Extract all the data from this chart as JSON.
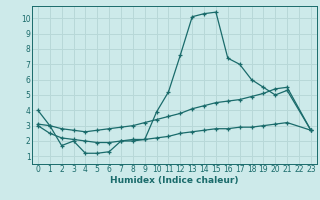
{
  "xlabel": "Humidex (Indice chaleur)",
  "bg_color": "#cdeaea",
  "grid_color": "#b8d8d8",
  "line_color": "#1a6b6b",
  "xlim": [
    -0.5,
    23.5
  ],
  "ylim": [
    0.5,
    10.8
  ],
  "xticks": [
    0,
    1,
    2,
    3,
    4,
    5,
    6,
    7,
    8,
    9,
    10,
    11,
    12,
    13,
    14,
    15,
    16,
    17,
    18,
    19,
    20,
    21,
    22,
    23
  ],
  "yticks": [
    1,
    2,
    3,
    4,
    5,
    6,
    7,
    8,
    9,
    10
  ],
  "line1_x": [
    0,
    1,
    2,
    3,
    4,
    5,
    6,
    7,
    8,
    9,
    10,
    11,
    12,
    13,
    14,
    15,
    16,
    17,
    18,
    19,
    20,
    21,
    23
  ],
  "line1_y": [
    4.0,
    3.0,
    1.7,
    2.0,
    1.2,
    1.2,
    1.3,
    2.0,
    2.1,
    2.1,
    3.9,
    5.2,
    7.6,
    10.1,
    10.3,
    10.4,
    7.4,
    7.0,
    6.0,
    5.5,
    5.0,
    5.3,
    2.7
  ],
  "line2_x": [
    0,
    1,
    2,
    3,
    4,
    5,
    6,
    7,
    8,
    9,
    10,
    11,
    12,
    13,
    14,
    15,
    16,
    17,
    18,
    19,
    20,
    21,
    23
  ],
  "line2_y": [
    3.1,
    3.0,
    2.8,
    2.7,
    2.6,
    2.7,
    2.8,
    2.9,
    3.0,
    3.2,
    3.4,
    3.6,
    3.8,
    4.1,
    4.3,
    4.5,
    4.6,
    4.7,
    4.9,
    5.1,
    5.4,
    5.5,
    2.7
  ],
  "line3_x": [
    0,
    1,
    2,
    3,
    4,
    5,
    6,
    7,
    8,
    9,
    10,
    11,
    12,
    13,
    14,
    15,
    16,
    17,
    18,
    19,
    20,
    21,
    23
  ],
  "line3_y": [
    3.0,
    2.5,
    2.2,
    2.1,
    2.0,
    1.9,
    1.9,
    2.0,
    2.0,
    2.1,
    2.2,
    2.3,
    2.5,
    2.6,
    2.7,
    2.8,
    2.8,
    2.9,
    2.9,
    3.0,
    3.1,
    3.2,
    2.7
  ]
}
